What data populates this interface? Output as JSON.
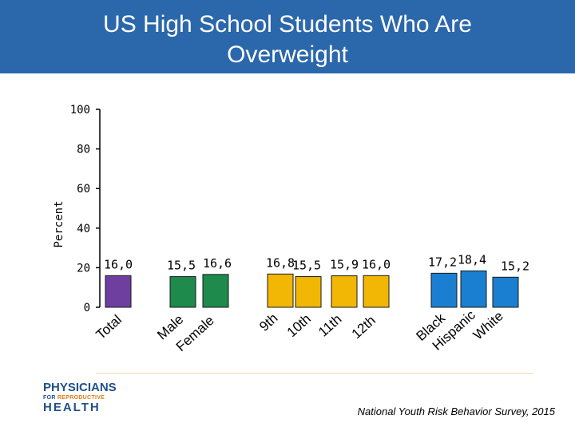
{
  "header": {
    "title_line1": "US High School Students Who Are",
    "title_line2": "Overweight"
  },
  "chart_data": {
    "type": "bar",
    "title": "US High School Students Who Are Overweight",
    "ylabel": "Percent",
    "ylim": [
      0,
      100
    ],
    "yticks": [
      "0",
      "20",
      "40",
      "60",
      "80",
      "100"
    ],
    "grid": false,
    "categories": [
      "Total",
      "Male",
      "Female",
      "9th",
      "10th",
      "11th",
      "12th",
      "Black",
      "Hispanic",
      "White"
    ],
    "values": [
      16.0,
      15.5,
      16.6,
      16.8,
      15.5,
      15.9,
      16.0,
      17.2,
      18.4,
      15.2
    ],
    "data_labels": [
      "16,0",
      "15,5",
      "16,6",
      "16,8",
      "15,5",
      "15,9",
      "16,0",
      "17,2",
      "18,4",
      "15,2"
    ],
    "bar_colors": [
      "#6f3fa0",
      "#1e8a4c",
      "#1e8a4c",
      "#f2b705",
      "#f2b705",
      "#f2b705",
      "#f2b705",
      "#1a7fd0",
      "#1a7fd0",
      "#1a7fd0"
    ]
  },
  "logo": {
    "line1": "PHYSICIANS",
    "line2a": "FOR ",
    "line2b": "REPRODUCTIVE",
    "line3": "HEALTH"
  },
  "source": "National Youth Risk Behavior Survey, 2015"
}
